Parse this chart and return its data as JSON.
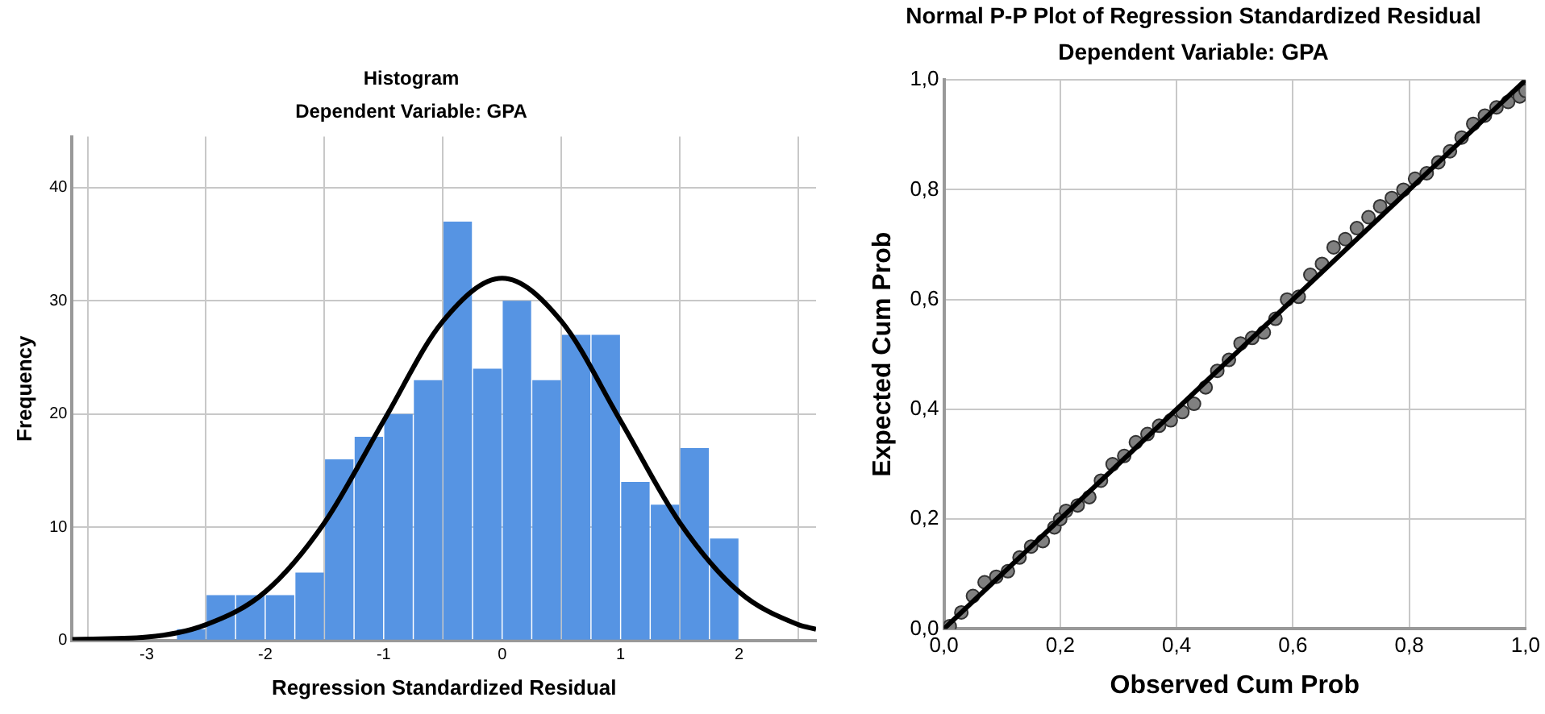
{
  "chart_data": [
    {
      "type": "histogram",
      "title": "Histogram",
      "subtitle": "Dependent Variable: GPA",
      "xlabel": "Regression Standardized Residual",
      "ylabel": "Frequency",
      "xlim": [
        -3.63,
        2.65
      ],
      "ylim": [
        0,
        44.5
      ],
      "xticks": [
        -3,
        -2,
        -1,
        0,
        1,
        2
      ],
      "yticks": [
        0,
        10,
        20,
        30,
        40
      ],
      "grid": true,
      "series": [
        {
          "type": "histogram",
          "color": "#5694e3",
          "bins": [
            -2.75,
            -2.5,
            -2.25,
            -2,
            -1.75,
            -1.5,
            -1.25,
            -1,
            -0.75,
            -0.5,
            -0.25,
            0,
            0.25,
            0.5,
            0.75,
            1,
            1.25,
            1.5,
            1.75,
            2
          ],
          "values": [
            1,
            4,
            4,
            4,
            6,
            16,
            18,
            20,
            23,
            37,
            24,
            30,
            23,
            27,
            27,
            14,
            12,
            17,
            9
          ]
        },
        {
          "type": "line",
          "color": "#000000",
          "x": [
            -3.63,
            -3,
            -2.5,
            -2,
            -1.5,
            -1,
            -0.5,
            0,
            0.5,
            1,
            1.5,
            2,
            2.5,
            2.65
          ],
          "values": [
            0.1,
            0.3,
            1.4,
            4.3,
            10.4,
            19.4,
            28.2,
            32,
            28.2,
            19.4,
            10.4,
            4.3,
            1.4,
            1.0
          ]
        }
      ]
    },
    {
      "type": "scatter",
      "title": "Normal P-P Plot of Regression Standardized Residual",
      "subtitle": "Dependent Variable: GPA",
      "xlabel": "Observed Cum Prob",
      "ylabel": "Expected Cum Prob",
      "xlim": [
        0,
        1
      ],
      "ylim": [
        0,
        1
      ],
      "xticks": [
        {
          "value": 0,
          "label": "0,0"
        },
        {
          "value": 0.2,
          "label": "0,2"
        },
        {
          "value": 0.4,
          "label": "0,4"
        },
        {
          "value": 0.6,
          "label": "0,6"
        },
        {
          "value": 0.8,
          "label": "0,8"
        },
        {
          "value": 1,
          "label": "1,0"
        }
      ],
      "yticks": [
        {
          "value": 0,
          "label": "0,0"
        },
        {
          "value": 0.2,
          "label": "0,2"
        },
        {
          "value": 0.4,
          "label": "0,4"
        },
        {
          "value": 0.6,
          "label": "0,6"
        },
        {
          "value": 0.8,
          "label": "0,8"
        },
        {
          "value": 1,
          "label": "1,0"
        }
      ],
      "grid": true,
      "series": [
        {
          "type": "scatter",
          "marker": "circle",
          "color": "#808080",
          "x": [
            0.01,
            0.03,
            0.05,
            0.07,
            0.09,
            0.11,
            0.13,
            0.15,
            0.17,
            0.19,
            0.2,
            0.21,
            0.23,
            0.25,
            0.27,
            0.29,
            0.31,
            0.33,
            0.35,
            0.37,
            0.39,
            0.41,
            0.43,
            0.45,
            0.47,
            0.49,
            0.51,
            0.53,
            0.55,
            0.57,
            0.59,
            0.61,
            0.63,
            0.65,
            0.67,
            0.69,
            0.71,
            0.73,
            0.75,
            0.77,
            0.79,
            0.81,
            0.83,
            0.85,
            0.87,
            0.89,
            0.91,
            0.93,
            0.95,
            0.97,
            0.99,
            1.0
          ],
          "values": [
            0.005,
            0.03,
            0.06,
            0.085,
            0.095,
            0.105,
            0.13,
            0.15,
            0.16,
            0.185,
            0.2,
            0.215,
            0.225,
            0.24,
            0.27,
            0.3,
            0.315,
            0.34,
            0.355,
            0.37,
            0.38,
            0.395,
            0.41,
            0.44,
            0.47,
            0.49,
            0.52,
            0.53,
            0.54,
            0.565,
            0.6,
            0.605,
            0.645,
            0.665,
            0.695,
            0.71,
            0.73,
            0.75,
            0.77,
            0.785,
            0.8,
            0.82,
            0.83,
            0.85,
            0.87,
            0.895,
            0.92,
            0.935,
            0.95,
            0.96,
            0.97,
            0.98
          ]
        },
        {
          "type": "line",
          "color": "#000000",
          "x": [
            0,
            1
          ],
          "values": [
            0,
            1
          ]
        }
      ]
    }
  ]
}
